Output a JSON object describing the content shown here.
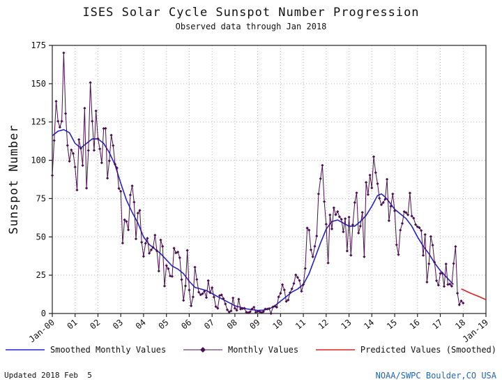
{
  "footer": {
    "updated": "Updated 2018 Feb  5",
    "credit": "NOAA/SWPC Boulder,CO USA",
    "credit_color": "#2266bb"
  },
  "chart_data": {
    "type": "line",
    "title": "ISES Solar Cycle Sunspot Number Progression",
    "subtitle": "Observed data through Jan 2018",
    "xlabel": "",
    "ylabel": "Sunspot Number",
    "ylim": [
      0,
      175
    ],
    "yticks": [
      0,
      25,
      50,
      75,
      100,
      125,
      150,
      175
    ],
    "xlim": [
      2000,
      2019
    ],
    "grid": true,
    "legend_position": "bottom",
    "xticks": [
      {
        "value": 2000,
        "label": "Jan-00"
      },
      {
        "value": 2001,
        "label": "01"
      },
      {
        "value": 2002,
        "label": "02"
      },
      {
        "value": 2003,
        "label": "03"
      },
      {
        "value": 2004,
        "label": "04"
      },
      {
        "value": 2005,
        "label": "05"
      },
      {
        "value": 2006,
        "label": "06"
      },
      {
        "value": 2007,
        "label": "07"
      },
      {
        "value": 2008,
        "label": "08"
      },
      {
        "value": 2009,
        "label": "09"
      },
      {
        "value": 2010,
        "label": "10"
      },
      {
        "value": 2011,
        "label": "11"
      },
      {
        "value": 2012,
        "label": "12"
      },
      {
        "value": 2013,
        "label": "13"
      },
      {
        "value": 2014,
        "label": "14"
      },
      {
        "value": 2015,
        "label": "15"
      },
      {
        "value": 2016,
        "label": "16"
      },
      {
        "value": 2017,
        "label": "17"
      },
      {
        "value": 2018,
        "label": "18"
      },
      {
        "value": 2019,
        "label": "Jan-19"
      }
    ],
    "series": [
      {
        "name": "Smoothed Monthly Values",
        "type": "line",
        "color": "#2222cc",
        "points": [
          [
            2000.0,
            116
          ],
          [
            2000.25,
            119
          ],
          [
            2000.5,
            120
          ],
          [
            2000.75,
            118
          ],
          [
            2001.0,
            111
          ],
          [
            2001.25,
            108
          ],
          [
            2001.5,
            111
          ],
          [
            2001.75,
            114
          ],
          [
            2002.0,
            114
          ],
          [
            2002.25,
            111
          ],
          [
            2002.5,
            105
          ],
          [
            2002.75,
            97
          ],
          [
            2003.0,
            85
          ],
          [
            2003.25,
            74
          ],
          [
            2003.5,
            66
          ],
          [
            2003.75,
            59
          ],
          [
            2004.0,
            50
          ],
          [
            2004.25,
            45
          ],
          [
            2004.5,
            42
          ],
          [
            2004.75,
            39
          ],
          [
            2005.0,
            35
          ],
          [
            2005.25,
            31
          ],
          [
            2005.5,
            29
          ],
          [
            2005.75,
            26
          ],
          [
            2006.0,
            21
          ],
          [
            2006.25,
            17
          ],
          [
            2006.5,
            16
          ],
          [
            2006.75,
            15
          ],
          [
            2007.0,
            13
          ],
          [
            2007.25,
            11
          ],
          [
            2007.5,
            9
          ],
          [
            2007.75,
            7
          ],
          [
            2008.0,
            5
          ],
          [
            2008.25,
            4
          ],
          [
            2008.5,
            3
          ],
          [
            2008.75,
            2.5
          ],
          [
            2009.0,
            2
          ],
          [
            2009.25,
            2.2
          ],
          [
            2009.5,
            3
          ],
          [
            2009.75,
            5
          ],
          [
            2010.0,
            8
          ],
          [
            2010.25,
            11
          ],
          [
            2010.5,
            14
          ],
          [
            2010.75,
            16
          ],
          [
            2011.0,
            19
          ],
          [
            2011.25,
            26
          ],
          [
            2011.5,
            36
          ],
          [
            2011.75,
            46
          ],
          [
            2012.0,
            55
          ],
          [
            2012.25,
            60
          ],
          [
            2012.5,
            61
          ],
          [
            2012.75,
            59
          ],
          [
            2013.0,
            57
          ],
          [
            2013.25,
            57
          ],
          [
            2013.5,
            60
          ],
          [
            2013.75,
            64
          ],
          [
            2014.0,
            70
          ],
          [
            2014.25,
            77
          ],
          [
            2014.42,
            78
          ],
          [
            2014.58,
            76
          ],
          [
            2014.75,
            73
          ],
          [
            2015.0,
            68
          ],
          [
            2015.25,
            65
          ],
          [
            2015.5,
            62
          ],
          [
            2015.75,
            57
          ],
          [
            2016.0,
            50
          ],
          [
            2016.25,
            44
          ],
          [
            2016.5,
            39
          ],
          [
            2016.75,
            33
          ],
          [
            2017.0,
            28
          ],
          [
            2017.25,
            24
          ],
          [
            2017.5,
            20
          ],
          [
            2017.58,
            19
          ]
        ]
      },
      {
        "name": "Monthly Values",
        "type": "line+markers",
        "marker": "diamond",
        "color": "#4a0e4e",
        "x_start": 2000.0,
        "x_step_months": 1,
        "values": [
          90.1,
          112.9,
          138.5,
          125.5,
          121.6,
          125.5,
          170.1,
          130.5,
          109.7,
          99.4,
          106.8,
          104.4,
          95.6,
          80.6,
          113.5,
          107.7,
          96.6,
          134.0,
          81.8,
          106.4,
          150.7,
          125.5,
          106.5,
          132.2,
          114.1,
          107.4,
          98.4,
          120.7,
          120.8,
          88.3,
          99.6,
          116.4,
          109.6,
          97.5,
          95.0,
          81.6,
          79.7,
          46.0,
          61.1,
          60.0,
          54.6,
          77.4,
          83.3,
          72.7,
          48.7,
          65.5,
          67.3,
          46.5,
          37.3,
          45.8,
          49.1,
          39.3,
          41.5,
          43.2,
          51.1,
          40.9,
          27.7,
          48.0,
          43.8,
          17.9,
          31.3,
          29.2,
          24.5,
          24.2,
          42.6,
          39.6,
          40.1,
          36.4,
          22.1,
          8.5,
          18.0,
          41.2,
          15.3,
          5.0,
          10.8,
          30.2,
          22.2,
          13.9,
          12.2,
          12.9,
          14.5,
          10.4,
          21.4,
          13.6,
          16.8,
          10.7,
          4.5,
          3.4,
          11.7,
          12.1,
          9.7,
          6.2,
          2.4,
          0.9,
          1.7,
          10.1,
          3.4,
          2.1,
          9.3,
          2.9,
          3.2,
          3.4,
          0.8,
          0.5,
          1.1,
          2.9,
          4.1,
          0.8,
          1.3,
          1.2,
          0.6,
          1.2,
          2.9,
          2.9,
          3.2,
          0.0,
          4.3,
          4.8,
          4.1,
          10.8,
          13.2,
          18.8,
          15.4,
          7.9,
          8.8,
          13.6,
          16.1,
          19.6,
          25.2,
          23.5,
          21.5,
          14.5,
          18.9,
          29.4,
          55.8,
          54.4,
          41.5,
          37.0,
          43.9,
          50.6,
          78.0,
          88.0,
          96.7,
          73.0,
          58.3,
          33.0,
          64.3,
          55.2,
          69.0,
          64.5,
          66.5,
          63.1,
          61.5,
          53.3,
          61.9,
          40.8,
          62.9,
          38.0,
          57.9,
          72.4,
          78.7,
          52.5,
          57.0,
          66.0,
          37.0,
          85.6,
          77.6,
          90.3,
          82.0,
          102.3,
          91.9,
          84.7,
          75.2,
          71.0,
          72.4,
          74.6,
          87.6,
          60.6,
          70.0,
          78.0,
          67.0,
          44.8,
          38.4,
          54.4,
          58.8,
          66.5,
          65.8,
          64.4,
          78.6,
          63.6,
          62.2,
          58.0,
          56.6,
          56.0,
          54.1,
          37.9,
          51.5,
          20.5,
          32.4,
          50.2,
          44.6,
          33.4,
          21.4,
          18.5,
          26.1,
          26.4,
          17.7,
          32.3,
          18.9,
          19.2,
          17.8,
          32.6,
          43.7,
          13.2,
          5.7,
          8.2,
          6.8
        ]
      },
      {
        "name": "Predicted Values (Smoothed)",
        "type": "line",
        "color": "#dd2222",
        "points": [
          [
            2017.92,
            16
          ],
          [
            2018.1,
            14.8
          ],
          [
            2018.3,
            13.4
          ],
          [
            2018.5,
            12.2
          ],
          [
            2018.7,
            11.0
          ],
          [
            2018.85,
            10.0
          ],
          [
            2019.0,
            9.0
          ]
        ]
      }
    ]
  }
}
